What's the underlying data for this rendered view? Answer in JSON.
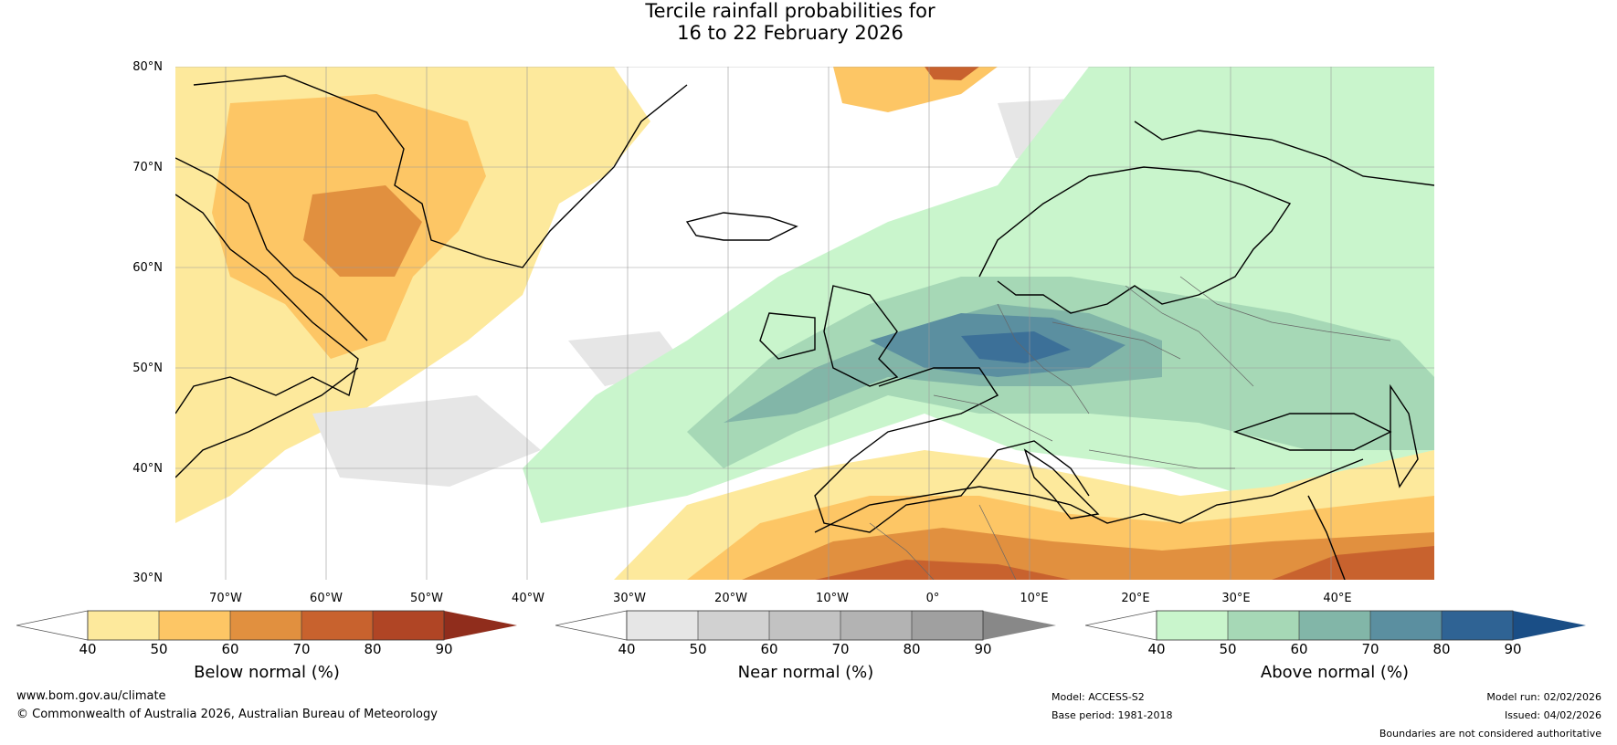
{
  "title": {
    "line1": "Tercile rainfall probabilities for",
    "line2": "16 to 22 February 2026"
  },
  "map": {
    "lat_labels": [
      "80°N",
      "70°N",
      "60°N",
      "50°N",
      "40°N",
      "30°N"
    ],
    "lon_labels": [
      "70°W",
      "60°W",
      "50°W",
      "40°W",
      "30°W",
      "20°W",
      "10°W",
      "0°",
      "10°E",
      "20°E",
      "30°E",
      "40°E"
    ],
    "lat_range": [
      30,
      81
    ],
    "lon_range": [
      -80,
      45
    ]
  },
  "colorbars": [
    {
      "label": "Below normal (%)",
      "ticks": [
        "40",
        "50",
        "60",
        "70",
        "80",
        "90"
      ],
      "colors": [
        "#ffffff",
        "#fde99c",
        "#fdc665",
        "#e1903f",
        "#c8622e",
        "#b04525",
        "#902d1c"
      ]
    },
    {
      "label": "Near normal (%)",
      "ticks": [
        "40",
        "50",
        "60",
        "70",
        "80",
        "90"
      ],
      "colors": [
        "#ffffff",
        "#e6e6e6",
        "#d1d1d1",
        "#c2c2c2",
        "#b3b3b3",
        "#a0a0a0",
        "#888888"
      ]
    },
    {
      "label": "Above normal (%)",
      "ticks": [
        "40",
        "50",
        "60",
        "70",
        "80",
        "90"
      ],
      "colors": [
        "#ffffff",
        "#c9f5cc",
        "#a6d8b6",
        "#82b6a8",
        "#5b8fa0",
        "#2f6394",
        "#1a4e86"
      ]
    }
  ],
  "footer": {
    "website": "www.bom.gov.au/climate",
    "copyright": "© Commonwealth of Australia 2026, Australian Bureau of Meteorology",
    "model": "Model: ACCESS-S2",
    "base_period": "Base period: 1981-2018",
    "model_run": "Model run: 02/02/2026",
    "issued": "Issued: 04/02/2026",
    "disclaimer": "Boundaries are not considered authoritative"
  }
}
